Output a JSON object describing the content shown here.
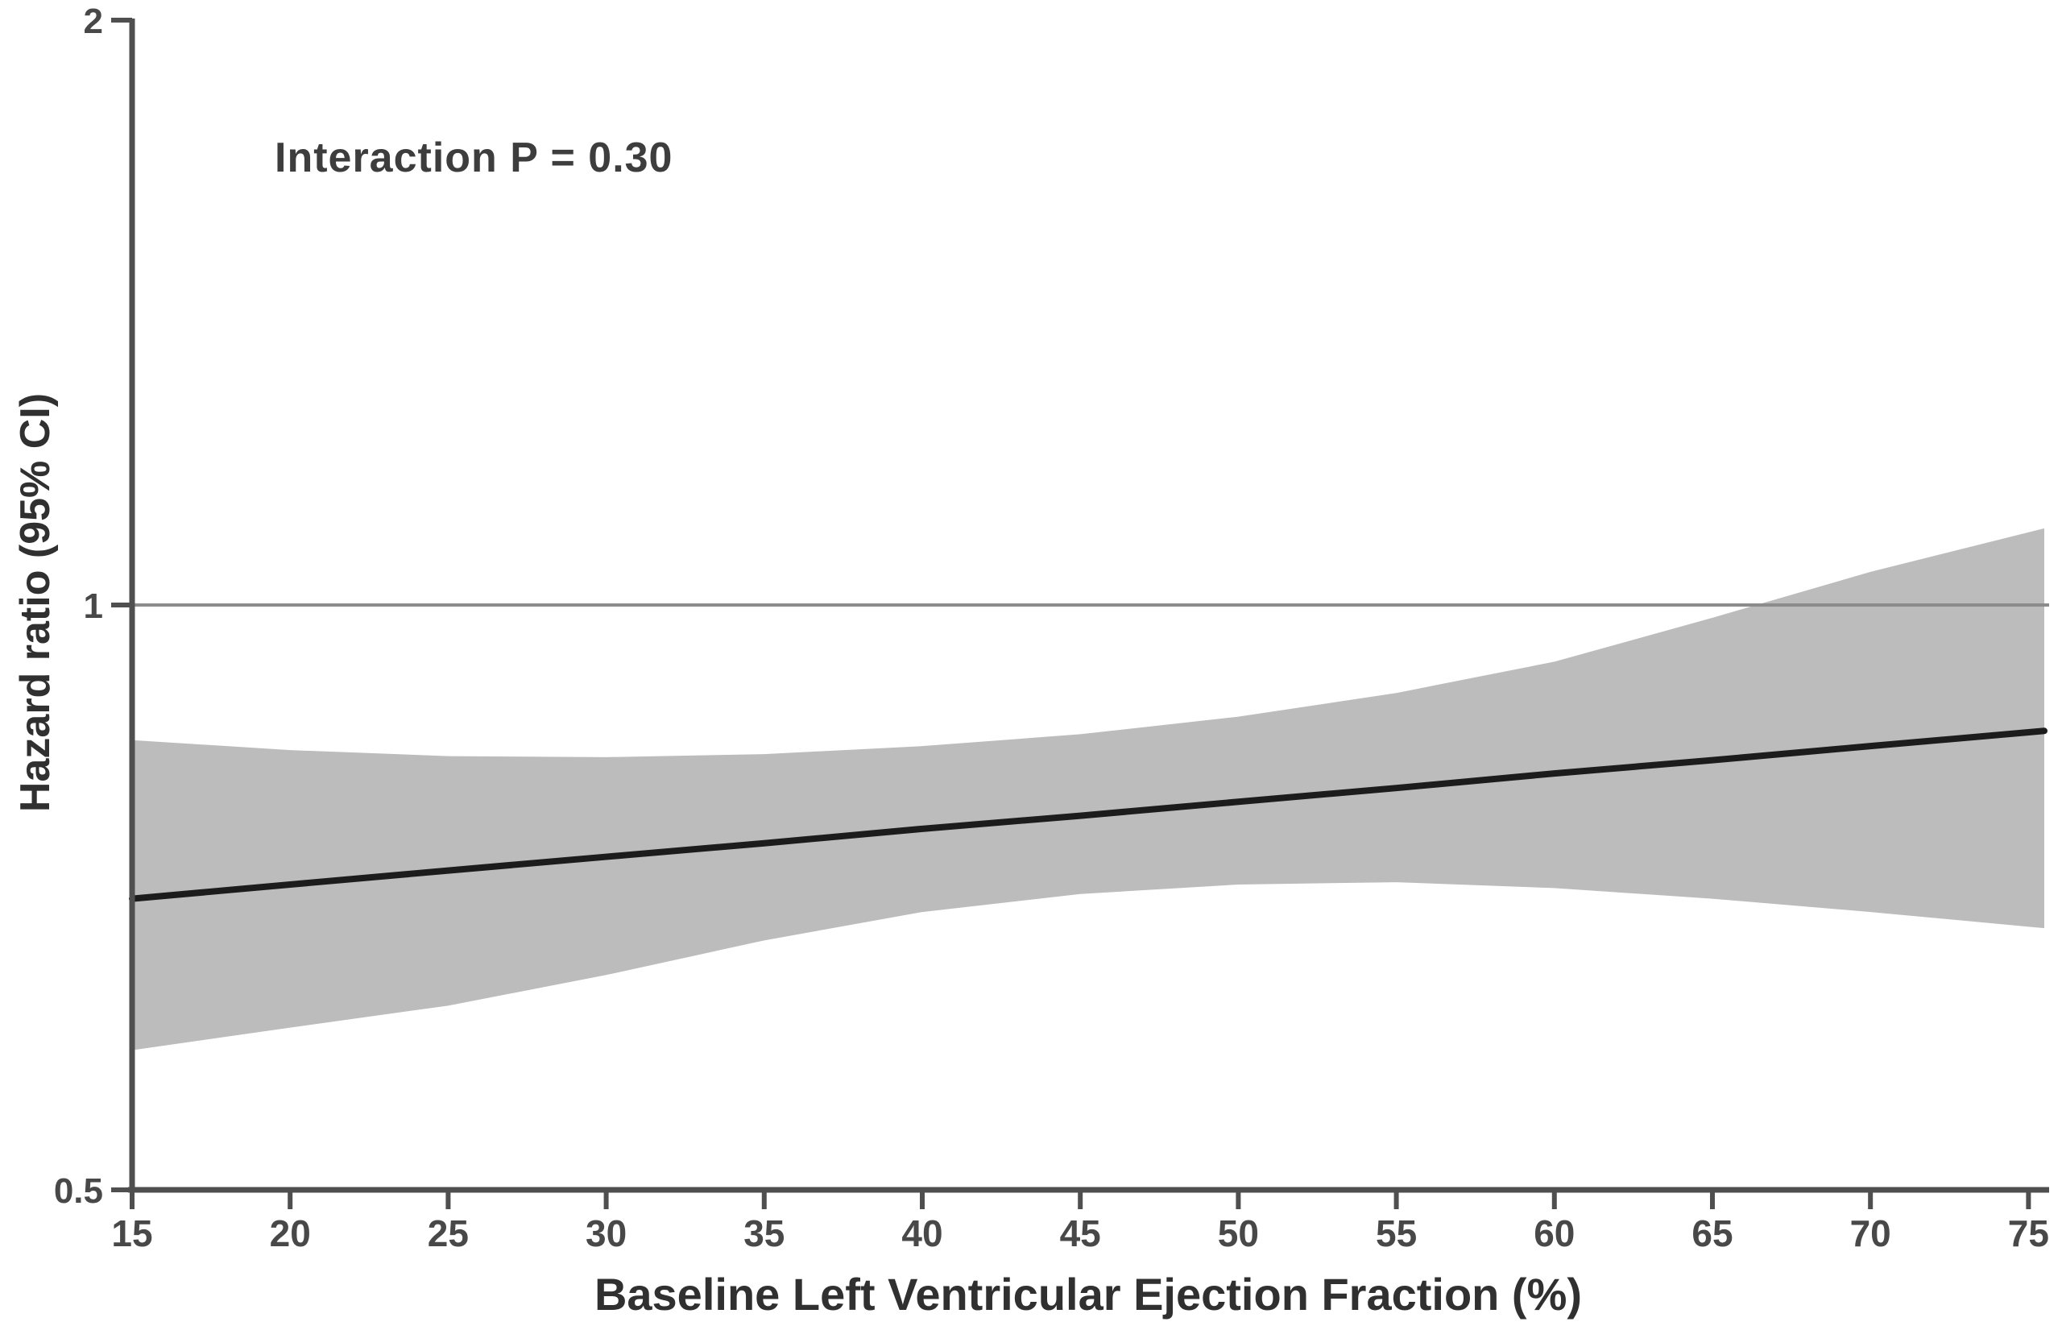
{
  "figure": {
    "annotation": "Interaction P = 0.30",
    "xlabel": "Baseline Left Ventricular Ejection Fraction (%)",
    "ylabel": "Hazard ratio (95% CI)"
  },
  "chart_data": {
    "type": "line",
    "title": "",
    "annotation": "Interaction P = 0.30",
    "xlabel": "Baseline Left Ventricular Ejection Fraction (%)",
    "ylabel": "Hazard ratio (95% CI)",
    "x_scale": "linear",
    "y_scale": "log2",
    "grid": false,
    "legend_position": "none",
    "xlim": [
      15,
      75.5
    ],
    "ylim": [
      0.5,
      2
    ],
    "xticks": [
      15,
      20,
      25,
      30,
      35,
      40,
      45,
      50,
      55,
      60,
      65,
      70,
      75
    ],
    "yticks": [
      2,
      1,
      0.5
    ],
    "ytick_labels": [
      "2",
      "1",
      "0.5"
    ],
    "reference_line_y": 1,
    "x": [
      15,
      20,
      25,
      30,
      35,
      40,
      45,
      50,
      55,
      60,
      65,
      70,
      75
    ],
    "series": [
      {
        "name": "hazard_ratio",
        "values": [
          0.706,
          0.718,
          0.73,
          0.742,
          0.754,
          0.767,
          0.779,
          0.792,
          0.805,
          0.819,
          0.832,
          0.846,
          0.86
        ]
      },
      {
        "name": "ci_upper",
        "values": [
          0.852,
          0.842,
          0.836,
          0.835,
          0.838,
          0.846,
          0.858,
          0.876,
          0.901,
          0.935,
          0.985,
          1.04,
          1.09
        ]
      },
      {
        "name": "ci_lower",
        "values": [
          0.59,
          0.606,
          0.622,
          0.645,
          0.672,
          0.695,
          0.71,
          0.718,
          0.72,
          0.715,
          0.706,
          0.695,
          0.683
        ]
      }
    ],
    "colors": {
      "band": "#bcbcbc",
      "line": "#1c1c1c",
      "reference_line": "#8c8c8c",
      "axis": "#4f4f4f",
      "text": "#3d3d3d"
    }
  }
}
